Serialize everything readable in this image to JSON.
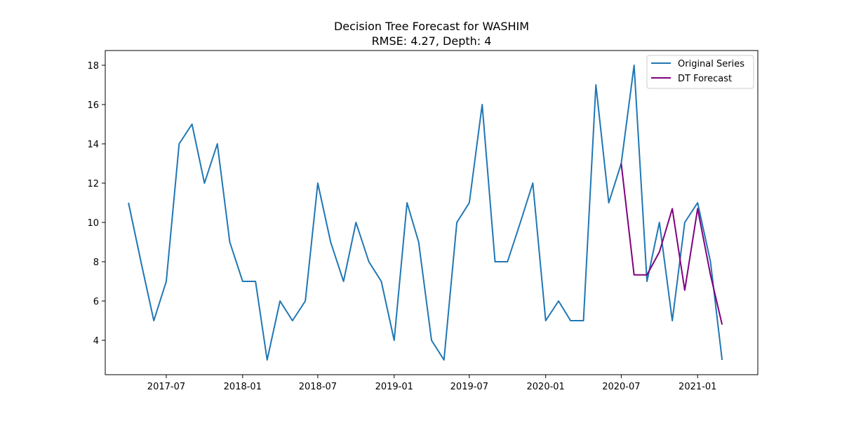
{
  "chart_data": {
    "type": "line",
    "title": "Decision Tree Forecast for WASHIM",
    "subtitle": "RMSE: 4.27, Depth: 4",
    "xlabel": "",
    "ylabel": "",
    "x_range": [
      "2017-02-04",
      "2021-05-26"
    ],
    "ylim": [
      2.25,
      18.75
    ],
    "grid": false,
    "legend_position": "top-right",
    "x_ticks": [
      "2017-07",
      "2018-01",
      "2018-07",
      "2019-01",
      "2019-07",
      "2020-01",
      "2020-07",
      "2021-01"
    ],
    "y_ticks": [
      4,
      6,
      8,
      10,
      12,
      14,
      16,
      18
    ],
    "series": [
      {
        "name": "Original Series",
        "color": "#1f77b4",
        "x": [
          "2017-04-01",
          "2017-05-01",
          "2017-06-01",
          "2017-07-01",
          "2017-08-01",
          "2017-09-01",
          "2017-10-01",
          "2017-11-01",
          "2017-12-01",
          "2018-01-01",
          "2018-02-01",
          "2018-03-01",
          "2018-04-01",
          "2018-05-01",
          "2018-06-01",
          "2018-07-01",
          "2018-08-01",
          "2018-09-01",
          "2018-10-01",
          "2018-11-01",
          "2018-12-01",
          "2019-01-01",
          "2019-02-01",
          "2019-03-01",
          "2019-04-01",
          "2019-05-01",
          "2019-06-01",
          "2019-07-01",
          "2019-08-01",
          "2019-09-01",
          "2019-10-01",
          "2019-11-01",
          "2019-12-01",
          "2020-01-01",
          "2020-02-01",
          "2020-03-01",
          "2020-04-01",
          "2020-05-01",
          "2020-06-01",
          "2020-07-01",
          "2020-08-01",
          "2020-09-01",
          "2020-10-01",
          "2020-11-01",
          "2020-12-01",
          "2021-01-01",
          "2021-02-01",
          "2021-03-01"
        ],
        "values": [
          11,
          8,
          5,
          7,
          14,
          15,
          12,
          14,
          9,
          7,
          7,
          3,
          6,
          5,
          6,
          12,
          9,
          7,
          10,
          8,
          7,
          4,
          11,
          9,
          4,
          3,
          10,
          11,
          16,
          8,
          8,
          10,
          12,
          5,
          6,
          5,
          5,
          17,
          11,
          13,
          18,
          7,
          10,
          5,
          10,
          11,
          8,
          3
        ]
      },
      {
        "name": "DT Forecast",
        "color": "#800080",
        "x": [
          "2020-07-01",
          "2020-08-01",
          "2020-09-01",
          "2020-10-01",
          "2020-11-01",
          "2020-12-01",
          "2021-01-01",
          "2021-02-01",
          "2021-03-01"
        ],
        "values": [
          13,
          7.33,
          7.33,
          8.5,
          10.7,
          6.55,
          10.7,
          7.33,
          4.8
        ]
      }
    ]
  }
}
